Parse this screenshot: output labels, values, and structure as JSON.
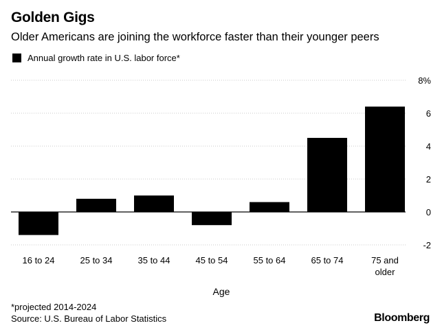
{
  "header": {
    "title": "Golden Gigs",
    "subtitle": "Older Americans are joining the workforce faster than their younger peers"
  },
  "legend": {
    "label": "Annual growth rate in U.S. labor force*"
  },
  "footer": {
    "footnote": "*projected 2014-2024",
    "source": "Source: U.S. Bureau of Labor Statistics",
    "brand": "Bloomberg"
  },
  "colors": {
    "bar": "#000000",
    "grid": "#c8c8c8",
    "zero_line": "#000000"
  },
  "chart_data": {
    "type": "bar",
    "title": "Golden Gigs",
    "subtitle": "Older Americans are joining the workforce faster than their younger peers",
    "xlabel": "Age",
    "ylabel": "",
    "categories": [
      "16 to 24",
      "25 to 34",
      "35 to 44",
      "45 to 54",
      "55 to 64",
      "65 to 74",
      "75 and older"
    ],
    "category_lines": [
      [
        "16 to 24"
      ],
      [
        "25 to 34"
      ],
      [
        "35 to 44"
      ],
      [
        "45 to 54"
      ],
      [
        "55 to 64"
      ],
      [
        "65 to 74"
      ],
      [
        "75 and",
        "older"
      ]
    ],
    "series": [
      {
        "name": "Annual growth rate in U.S. labor force*",
        "values": [
          -1.4,
          0.8,
          1.0,
          -0.8,
          0.6,
          4.5,
          6.4
        ]
      }
    ],
    "ylim": [
      -2,
      8
    ],
    "yticks": [
      8,
      6,
      4,
      2,
      0,
      -2
    ],
    "ytick_labels": [
      "8%",
      "6",
      "4",
      "2",
      "0",
      "-2"
    ],
    "grid": true,
    "legend_position": "top-left",
    "y_axis_side": "right"
  }
}
